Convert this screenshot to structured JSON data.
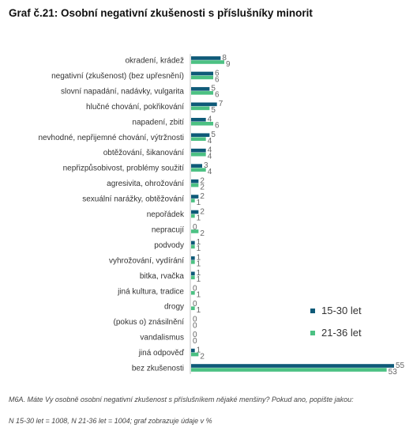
{
  "title": "Graf č.21: Osobní negativní zkušenosti s příslušníky minorit",
  "colors": {
    "series1": "#0e5a78",
    "series2": "#4cc183"
  },
  "chart_data": {
    "type": "bar",
    "orientation": "horizontal",
    "categories": [
      "okradení, krádež",
      "negativní (zkušenost) (bez upřesnění)",
      "slovní napadání, nadávky, vulgarita",
      "hlučné chování, pokřikování",
      "napadení, zbití",
      "nevhodné, nepřijemné chování, výtržnosti",
      "obtěžování, šikanování",
      "nepřizpůsobivost, problémy soužití",
      "agresivita, ohrožování",
      "sexuální narážky, obtěžování",
      "nepořádek",
      "nepracují",
      "podvody",
      "vyhrožování, vydírání",
      "bitka, rvačka",
      "jiná kultura, tradice",
      "drogy",
      "(pokus o) znásilnění",
      "vandalismus",
      "jiná odpověď",
      "bez zkušenosti"
    ],
    "series": [
      {
        "name": "15-30 let",
        "color": "#0e5a78",
        "values": [
          8,
          6,
          5,
          7,
          4,
          5,
          4,
          3,
          2,
          2,
          2,
          0,
          1,
          1,
          1,
          0,
          0,
          0,
          0,
          1,
          55
        ]
      },
      {
        "name": "21-36 let",
        "color": "#4cc183",
        "values": [
          9,
          6,
          6,
          5,
          6,
          4,
          4,
          4,
          2,
          1,
          1,
          2,
          1,
          1,
          1,
          1,
          1,
          0,
          0,
          2,
          53
        ]
      }
    ],
    "xlim": [
      0,
      55
    ],
    "grid": false,
    "legend_position": "right"
  },
  "notes": {
    "question": "M6A. Máte Vy osobně osobní negativní zkušenost s příslušníkem nějaké menšiny? Pokud ano, popište jakou:",
    "sample": "N 15-30 let = 1008, N 21-36 let = 1004; graf zobrazuje údaje v %"
  }
}
